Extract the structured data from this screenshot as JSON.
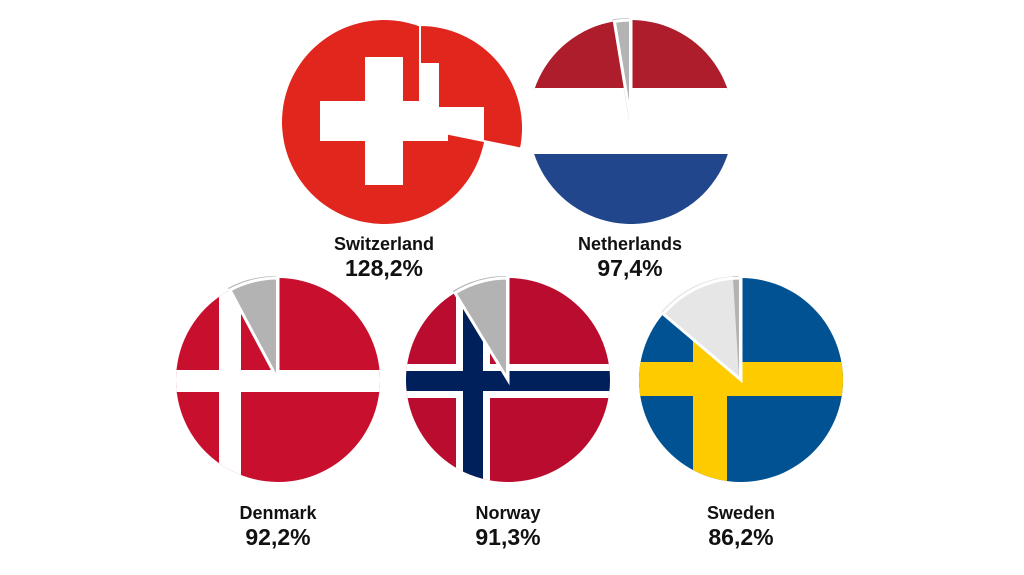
{
  "chart_data": {
    "type": "pie",
    "title": "",
    "series": [
      {
        "name": "Switzerland",
        "value": 128.2,
        "label": "128,2%",
        "flag": "switzerland"
      },
      {
        "name": "Netherlands",
        "value": 97.4,
        "label": "97,4%",
        "flag": "netherlands"
      },
      {
        "name": "Denmark",
        "value": 92.2,
        "label": "92,2%",
        "flag": "denmark"
      },
      {
        "name": "Norway",
        "value": 91.3,
        "label": "91,3%",
        "flag": "norway"
      },
      {
        "name": "Sweden",
        "value": 86.2,
        "label": "86,2%",
        "flag": "sweden"
      }
    ]
  },
  "colors": {
    "switzerland_red": "#e0261d",
    "netherlands_red": "#ad1d2b",
    "netherlands_blue": "#21468b",
    "denmark_red": "#c8102e",
    "norway_red": "#ba0c2f",
    "norway_blue": "#00205b",
    "sweden_blue": "#005293",
    "sweden_yellow": "#fecb00",
    "remainder_gray": "#b3b3b3",
    "remainder_light": "#e6e6e6"
  }
}
